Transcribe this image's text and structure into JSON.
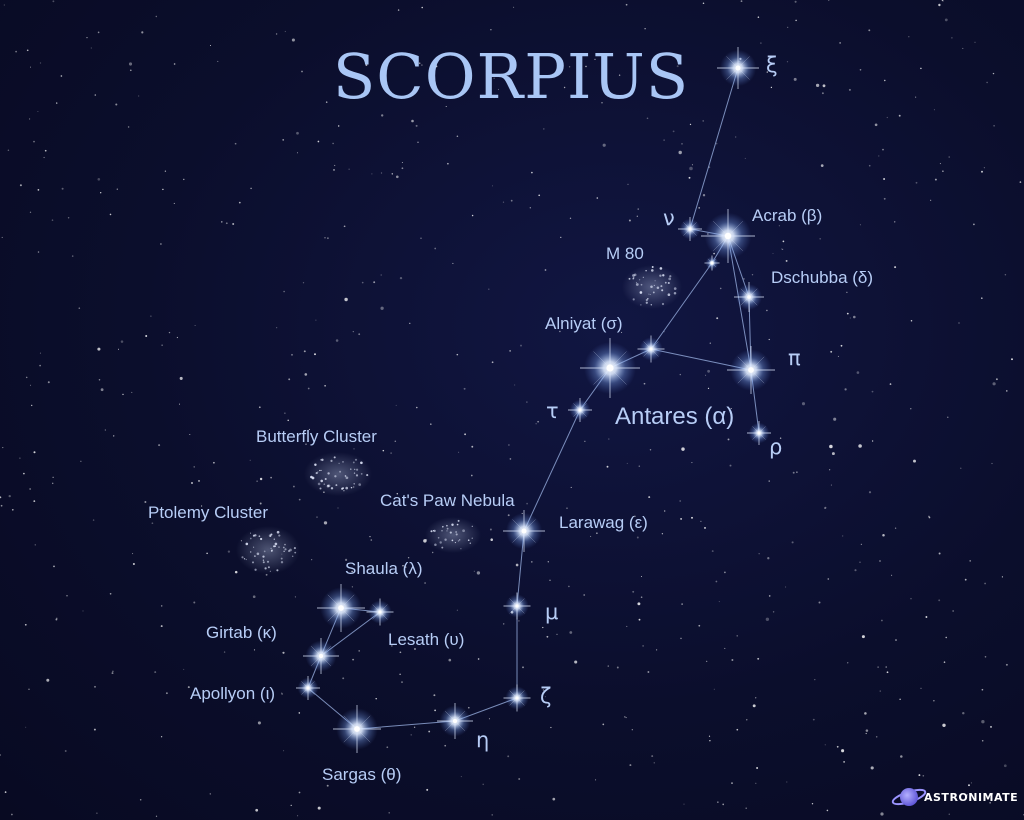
{
  "title": "SCORPIUS",
  "labels": {
    "xi": "ξ",
    "nu": "ν",
    "acrab": "Acrab (β)",
    "m80": "M 80",
    "dschubba": "Dschubba (δ)",
    "alniyat": "Alniyat (σ)",
    "pi": "π",
    "tau": "τ",
    "antares": "Antares (α)",
    "rho": "ρ",
    "butterfly": "Butterfly Cluster",
    "catspaw": "Cat's Paw Nebula",
    "ptolemy": "Ptolemy Cluster",
    "larawag": "Larawag (ε)",
    "shaula": "Shaula (λ)",
    "mu": "μ",
    "girtab": "Girtab (κ)",
    "lesath": "Lesath (υ)",
    "apollyon": "Apollyon (ι)",
    "zeta": "ζ",
    "eta": "η",
    "sargas": "Sargas (θ)"
  },
  "brand": "ASTRONIMATE",
  "colors": {
    "background": "#0b0f2e",
    "label": "#b7cdf6",
    "title": "#a9c6f5",
    "star_glow": "#9ec4ff",
    "brand_planet": "#7f78e6"
  }
}
